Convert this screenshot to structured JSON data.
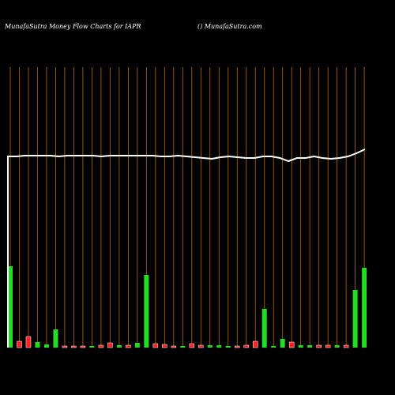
{
  "chart_data": {
    "type": "money-flow",
    "title": "MunafaSutra  Money Flow  Charts for IAPR",
    "subtitle": "() MunafaSutra.com",
    "values": [
      103,
      8,
      14,
      7,
      4,
      23,
      2,
      2,
      2,
      2,
      3,
      6,
      3,
      3,
      6,
      92,
      5,
      4,
      2,
      2,
      5,
      3,
      3,
      3,
      2,
      2,
      3,
      8,
      49,
      2,
      11,
      7,
      3,
      3,
      3,
      3,
      3,
      3,
      73,
      101
    ],
    "colors": [
      "#22dd22",
      "#ff2020",
      "#ff2020",
      "#22dd22",
      "#22dd22",
      "#22dd22",
      "#ff2020",
      "#ff2020",
      "#ff2020",
      "#22dd22",
      "#ff2020",
      "#ff2020",
      "#22dd22",
      "#ff2020",
      "#22dd22",
      "#22dd22",
      "#ff2020",
      "#ff2020",
      "#ff2020",
      "#22dd22",
      "#ff2020",
      "#ff2020",
      "#22dd22",
      "#22dd22",
      "#22dd22",
      "#ff2020",
      "#ff2020",
      "#ff2020",
      "#22dd22",
      "#22dd22",
      "#22dd22",
      "#ff2020",
      "#22dd22",
      "#22dd22",
      "#ff2020",
      "#ff2020",
      "#22dd22",
      "#ff2020",
      "#22dd22",
      "#22dd22"
    ],
    "line": {
      "color": "#ffffff",
      "values": [
        242,
        242,
        243,
        243,
        243,
        243,
        242,
        243,
        243,
        243,
        243,
        242,
        243,
        243,
        243,
        243,
        243,
        243,
        242,
        242,
        243,
        242,
        241,
        240,
        239,
        241,
        242,
        241,
        240,
        240,
        242,
        242,
        240,
        236,
        240,
        240,
        242,
        240,
        239,
        240,
        242,
        246,
        251
      ]
    },
    "ylim": [
      0,
      360
    ]
  }
}
